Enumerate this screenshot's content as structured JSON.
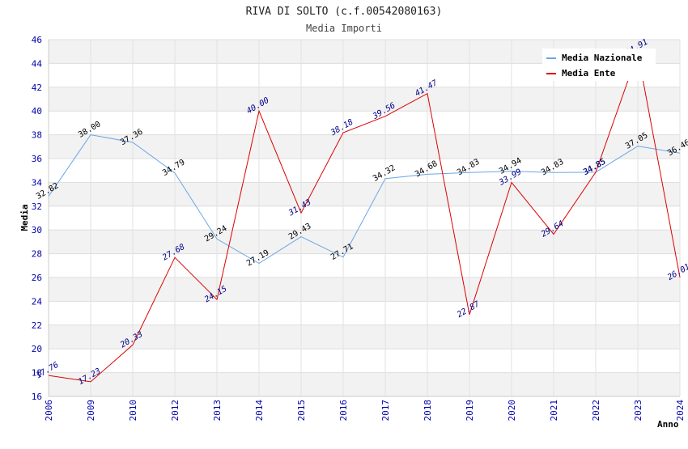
{
  "chart_data": {
    "type": "line",
    "title": "RIVA DI SOLTO (c.f.00542080163)",
    "subtitle": "Media Importi",
    "xlabel": "Anno",
    "ylabel": "Media",
    "ylim": [
      16,
      46
    ],
    "yticks": [
      16,
      18,
      20,
      22,
      24,
      26,
      28,
      30,
      32,
      34,
      36,
      38,
      40,
      42,
      44,
      46
    ],
    "categories": [
      "2006",
      "2009",
      "2010",
      "2012",
      "2013",
      "2014",
      "2015",
      "2016",
      "2017",
      "2018",
      "2019",
      "2020",
      "2021",
      "2022",
      "2023",
      "2024"
    ],
    "grid": true,
    "legend_position": "top-right",
    "series": [
      {
        "name": "Media Nazionale",
        "color": "#6aa6e6",
        "values": [
          32.82,
          38.0,
          37.36,
          34.79,
          29.24,
          27.19,
          29.43,
          27.71,
          34.32,
          34.68,
          34.83,
          34.94,
          34.83,
          34.85,
          37.05,
          36.46
        ],
        "labels": [
          "32.82",
          "38.00",
          "37.36",
          "34.79",
          "29.24",
          "27.19",
          "29.43",
          "27.71",
          "34.32",
          "34.68",
          "34.83",
          "34.94",
          "34.83",
          "34.85",
          "37.05",
          "36.46"
        ]
      },
      {
        "name": "Media Ente",
        "color": "#dd0000",
        "values": [
          17.76,
          17.23,
          20.33,
          27.68,
          24.15,
          40.0,
          31.43,
          38.18,
          39.56,
          41.47,
          22.87,
          33.99,
          29.64,
          34.85,
          44.91,
          26.01
        ],
        "labels": [
          "17.76",
          "17.23",
          "20.33",
          "27.68",
          "24.15",
          "40.00",
          "31.43",
          "38.18",
          "39.56",
          "41.47",
          "22.87",
          "33.99",
          "29.64",
          "34.85",
          "44.91",
          "26.01"
        ]
      }
    ]
  }
}
